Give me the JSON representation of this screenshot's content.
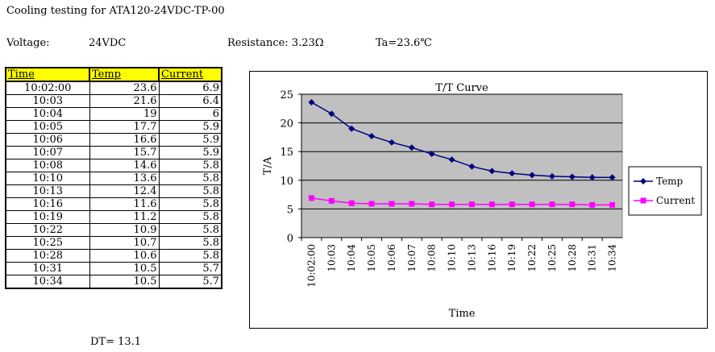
{
  "header": {
    "title": "Cooling testing for ATA120-24VDC-TP-00",
    "voltage_label": "Voltage:",
    "voltage_value": "24VDC",
    "resistance": "Resistance: 3.23Ω",
    "ta": "Ta=23.6℃"
  },
  "table": {
    "headers": [
      "Time",
      "Temp",
      "Current"
    ],
    "rows": [
      [
        "10:02:00",
        "23.6",
        "6.9"
      ],
      [
        "10:03",
        "21.6",
        "6.4"
      ],
      [
        "10:04",
        "19",
        "6"
      ],
      [
        "10:05",
        "17.7",
        "5.9"
      ],
      [
        "10:06",
        "16.6",
        "5.9"
      ],
      [
        "10:07",
        "15.7",
        "5.9"
      ],
      [
        "10:08",
        "14.6",
        "5.8"
      ],
      [
        "10:10",
        "13.6",
        "5.8"
      ],
      [
        "10:13",
        "12.4",
        "5.8"
      ],
      [
        "10:16",
        "11.6",
        "5.8"
      ],
      [
        "10:19",
        "11.2",
        "5.8"
      ],
      [
        "10:22",
        "10.9",
        "5.8"
      ],
      [
        "10:25",
        "10.7",
        "5.8"
      ],
      [
        "10:28",
        "10.6",
        "5.8"
      ],
      [
        "10:31",
        "10.5",
        "5.7"
      ],
      [
        "10:34",
        "10.5",
        "5.7"
      ]
    ],
    "footer": "DT= 13.1"
  },
  "chart_data": {
    "type": "line",
    "title": "T/T Curve",
    "xlabel": "Time",
    "ylabel": "T/A",
    "x": [
      "10:02:00",
      "10:03",
      "10:04",
      "10:05",
      "10:06",
      "10:07",
      "10:08",
      "10:10",
      "10:13",
      "10:16",
      "10:19",
      "10:22",
      "10:25",
      "10:28",
      "10:31",
      "10:34"
    ],
    "series": [
      {
        "name": "Temp",
        "color": "#000080",
        "marker": "diamond",
        "values": [
          23.6,
          21.6,
          19,
          17.7,
          16.6,
          15.7,
          14.6,
          13.6,
          12.4,
          11.6,
          11.2,
          10.9,
          10.7,
          10.6,
          10.5,
          10.5
        ]
      },
      {
        "name": "Current",
        "color": "#ff00ff",
        "marker": "square",
        "values": [
          6.9,
          6.4,
          6,
          5.9,
          5.9,
          5.9,
          5.8,
          5.8,
          5.8,
          5.8,
          5.8,
          5.8,
          5.8,
          5.8,
          5.7,
          5.7
        ]
      }
    ],
    "ylim": [
      0,
      25
    ],
    "yticks": [
      0,
      5,
      10,
      15,
      20,
      25
    ],
    "grid": true,
    "plot_background": "#c0c0c0",
    "legend": "right"
  }
}
